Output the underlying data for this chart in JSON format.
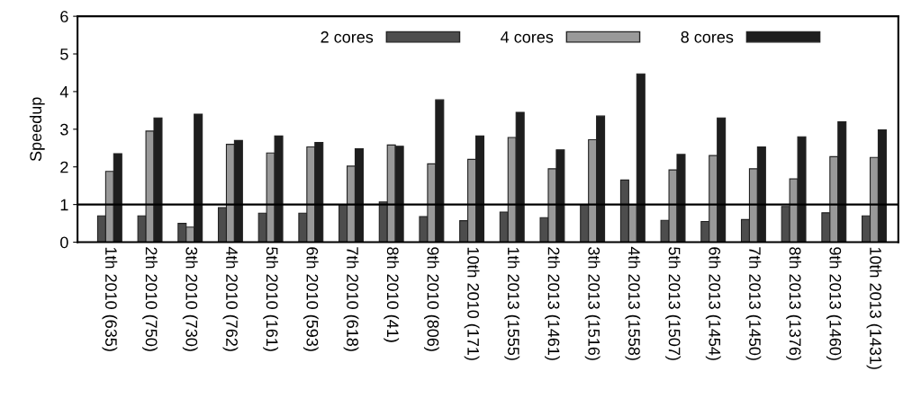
{
  "chart_data": {
    "type": "bar",
    "ylabel": "Speedup",
    "categories": [
      "1th 2010 (635)",
      "2th 2010 (750)",
      "3th 2010 (730)",
      "4th 2010 (762)",
      "5th 2010 (161)",
      "6th 2010 (593)",
      "7th 2010 (618)",
      "8th 2010 (41)",
      "9th 2010 (806)",
      "10th 2010 (171)",
      "1th 2013 (1555)",
      "2th 2013 (1461)",
      "3th 2013 (1516)",
      "4th 2013 (1558)",
      "5th 2013 (1507)",
      "6th 2013 (1454)",
      "7th 2013 (1450)",
      "8th 2013 (1376)",
      "9th 2013 (1460)",
      "10th 2013 (1431)"
    ],
    "series": [
      {
        "name": "2 cores",
        "color": "#4d4d4d",
        "values": [
          0.7,
          0.7,
          0.5,
          0.92,
          0.77,
          0.77,
          1.0,
          1.07,
          0.68,
          0.57,
          0.8,
          0.65,
          1.0,
          1.65,
          0.58,
          0.55,
          0.6,
          0.95,
          0.78,
          0.7
        ]
      },
      {
        "name": "4 cores",
        "color": "#999999",
        "values": [
          1.88,
          2.95,
          0.4,
          2.6,
          2.37,
          2.53,
          2.02,
          2.58,
          2.08,
          2.2,
          2.78,
          1.95,
          2.72,
          1.0,
          1.92,
          2.3,
          1.95,
          1.68,
          2.27,
          2.25
        ]
      },
      {
        "name": "8 cores",
        "color": "#1e1e1e",
        "values": [
          2.35,
          3.3,
          3.4,
          2.7,
          2.82,
          2.65,
          2.48,
          2.55,
          3.78,
          2.82,
          3.45,
          2.45,
          3.35,
          4.47,
          2.33,
          3.3,
          2.53,
          2.8,
          3.2,
          2.98
        ]
      }
    ],
    "ylim": [
      0,
      6
    ],
    "yticks": [
      0,
      1,
      2,
      3,
      4,
      5,
      6
    ],
    "ref_lines": [
      {
        "axis": "y",
        "value": 1,
        "color": "#000000"
      }
    ],
    "grid": false,
    "legend": "top"
  }
}
